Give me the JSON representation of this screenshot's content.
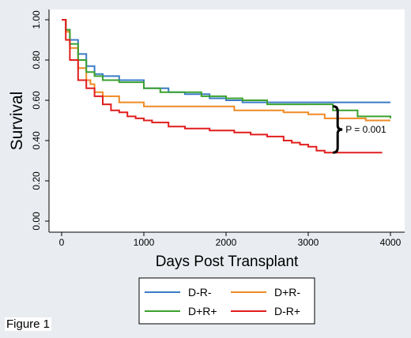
{
  "figure_caption": "Figure 1",
  "chart_data": {
    "type": "line",
    "title": "",
    "xlabel": "Days Post Transplant",
    "ylabel": "Survival",
    "xlim": [
      0,
      4000
    ],
    "ylim": [
      0,
      1
    ],
    "x_ticks": [
      0,
      1000,
      2000,
      3000,
      4000
    ],
    "x_tick_labels": [
      "0",
      "1000",
      "2000",
      "3000",
      "4000"
    ],
    "y_ticks": [
      0,
      0.2,
      0.4,
      0.6,
      0.8,
      1.0
    ],
    "y_tick_labels": [
      "0.00",
      "0.20",
      "0.40",
      "0.60",
      "0.80",
      "1.00"
    ],
    "grid": false,
    "legend_position": "bottom",
    "annotation": {
      "text": "P = 0.001",
      "x": 3300,
      "y_upper": 0.57,
      "y_lower": 0.34
    },
    "series": [
      {
        "name": "D-R-",
        "color": "#3a7cc7",
        "points": [
          [
            0,
            1.0
          ],
          [
            50,
            0.95
          ],
          [
            100,
            0.9
          ],
          [
            200,
            0.83
          ],
          [
            300,
            0.77
          ],
          [
            400,
            0.73
          ],
          [
            500,
            0.72
          ],
          [
            700,
            0.7
          ],
          [
            1000,
            0.66
          ],
          [
            1300,
            0.64
          ],
          [
            1500,
            0.63
          ],
          [
            1800,
            0.61
          ],
          [
            2000,
            0.6
          ],
          [
            2200,
            0.59
          ],
          [
            2500,
            0.59
          ],
          [
            3000,
            0.59
          ],
          [
            3500,
            0.59
          ],
          [
            4000,
            0.59
          ]
        ]
      },
      {
        "name": "D+R-",
        "color": "#ef8a24",
        "points": [
          [
            0,
            1.0
          ],
          [
            50,
            0.94
          ],
          [
            100,
            0.86
          ],
          [
            200,
            0.76
          ],
          [
            300,
            0.7
          ],
          [
            350,
            0.68
          ],
          [
            400,
            0.64
          ],
          [
            500,
            0.62
          ],
          [
            700,
            0.59
          ],
          [
            1000,
            0.57
          ],
          [
            1500,
            0.57
          ],
          [
            2000,
            0.57
          ],
          [
            2100,
            0.55
          ],
          [
            2500,
            0.55
          ],
          [
            2700,
            0.54
          ],
          [
            3000,
            0.53
          ],
          [
            3200,
            0.51
          ],
          [
            3500,
            0.51
          ],
          [
            3700,
            0.5
          ],
          [
            4000,
            0.5
          ]
        ]
      },
      {
        "name": "D+R+",
        "color": "#3aa22e",
        "points": [
          [
            0,
            1.0
          ],
          [
            50,
            0.95
          ],
          [
            100,
            0.88
          ],
          [
            200,
            0.8
          ],
          [
            300,
            0.74
          ],
          [
            400,
            0.72
          ],
          [
            500,
            0.7
          ],
          [
            700,
            0.69
          ],
          [
            1000,
            0.66
          ],
          [
            1200,
            0.64
          ],
          [
            1500,
            0.64
          ],
          [
            1700,
            0.62
          ],
          [
            2000,
            0.61
          ],
          [
            2200,
            0.6
          ],
          [
            2500,
            0.58
          ],
          [
            3000,
            0.58
          ],
          [
            3300,
            0.55
          ],
          [
            3600,
            0.52
          ],
          [
            4000,
            0.51
          ]
        ]
      },
      {
        "name": "D-R+",
        "color": "#e11d1d",
        "points": [
          [
            0,
            1.0
          ],
          [
            50,
            0.9
          ],
          [
            100,
            0.8
          ],
          [
            200,
            0.7
          ],
          [
            300,
            0.66
          ],
          [
            400,
            0.62
          ],
          [
            500,
            0.58
          ],
          [
            600,
            0.55
          ],
          [
            700,
            0.54
          ],
          [
            800,
            0.52
          ],
          [
            900,
            0.51
          ],
          [
            1000,
            0.5
          ],
          [
            1100,
            0.49
          ],
          [
            1300,
            0.47
          ],
          [
            1500,
            0.46
          ],
          [
            1800,
            0.45
          ],
          [
            2100,
            0.44
          ],
          [
            2300,
            0.43
          ],
          [
            2500,
            0.42
          ],
          [
            2700,
            0.4
          ],
          [
            2800,
            0.39
          ],
          [
            2900,
            0.38
          ],
          [
            3000,
            0.37
          ],
          [
            3100,
            0.35
          ],
          [
            3200,
            0.34
          ],
          [
            3500,
            0.34
          ],
          [
            3900,
            0.34
          ]
        ]
      }
    ]
  }
}
